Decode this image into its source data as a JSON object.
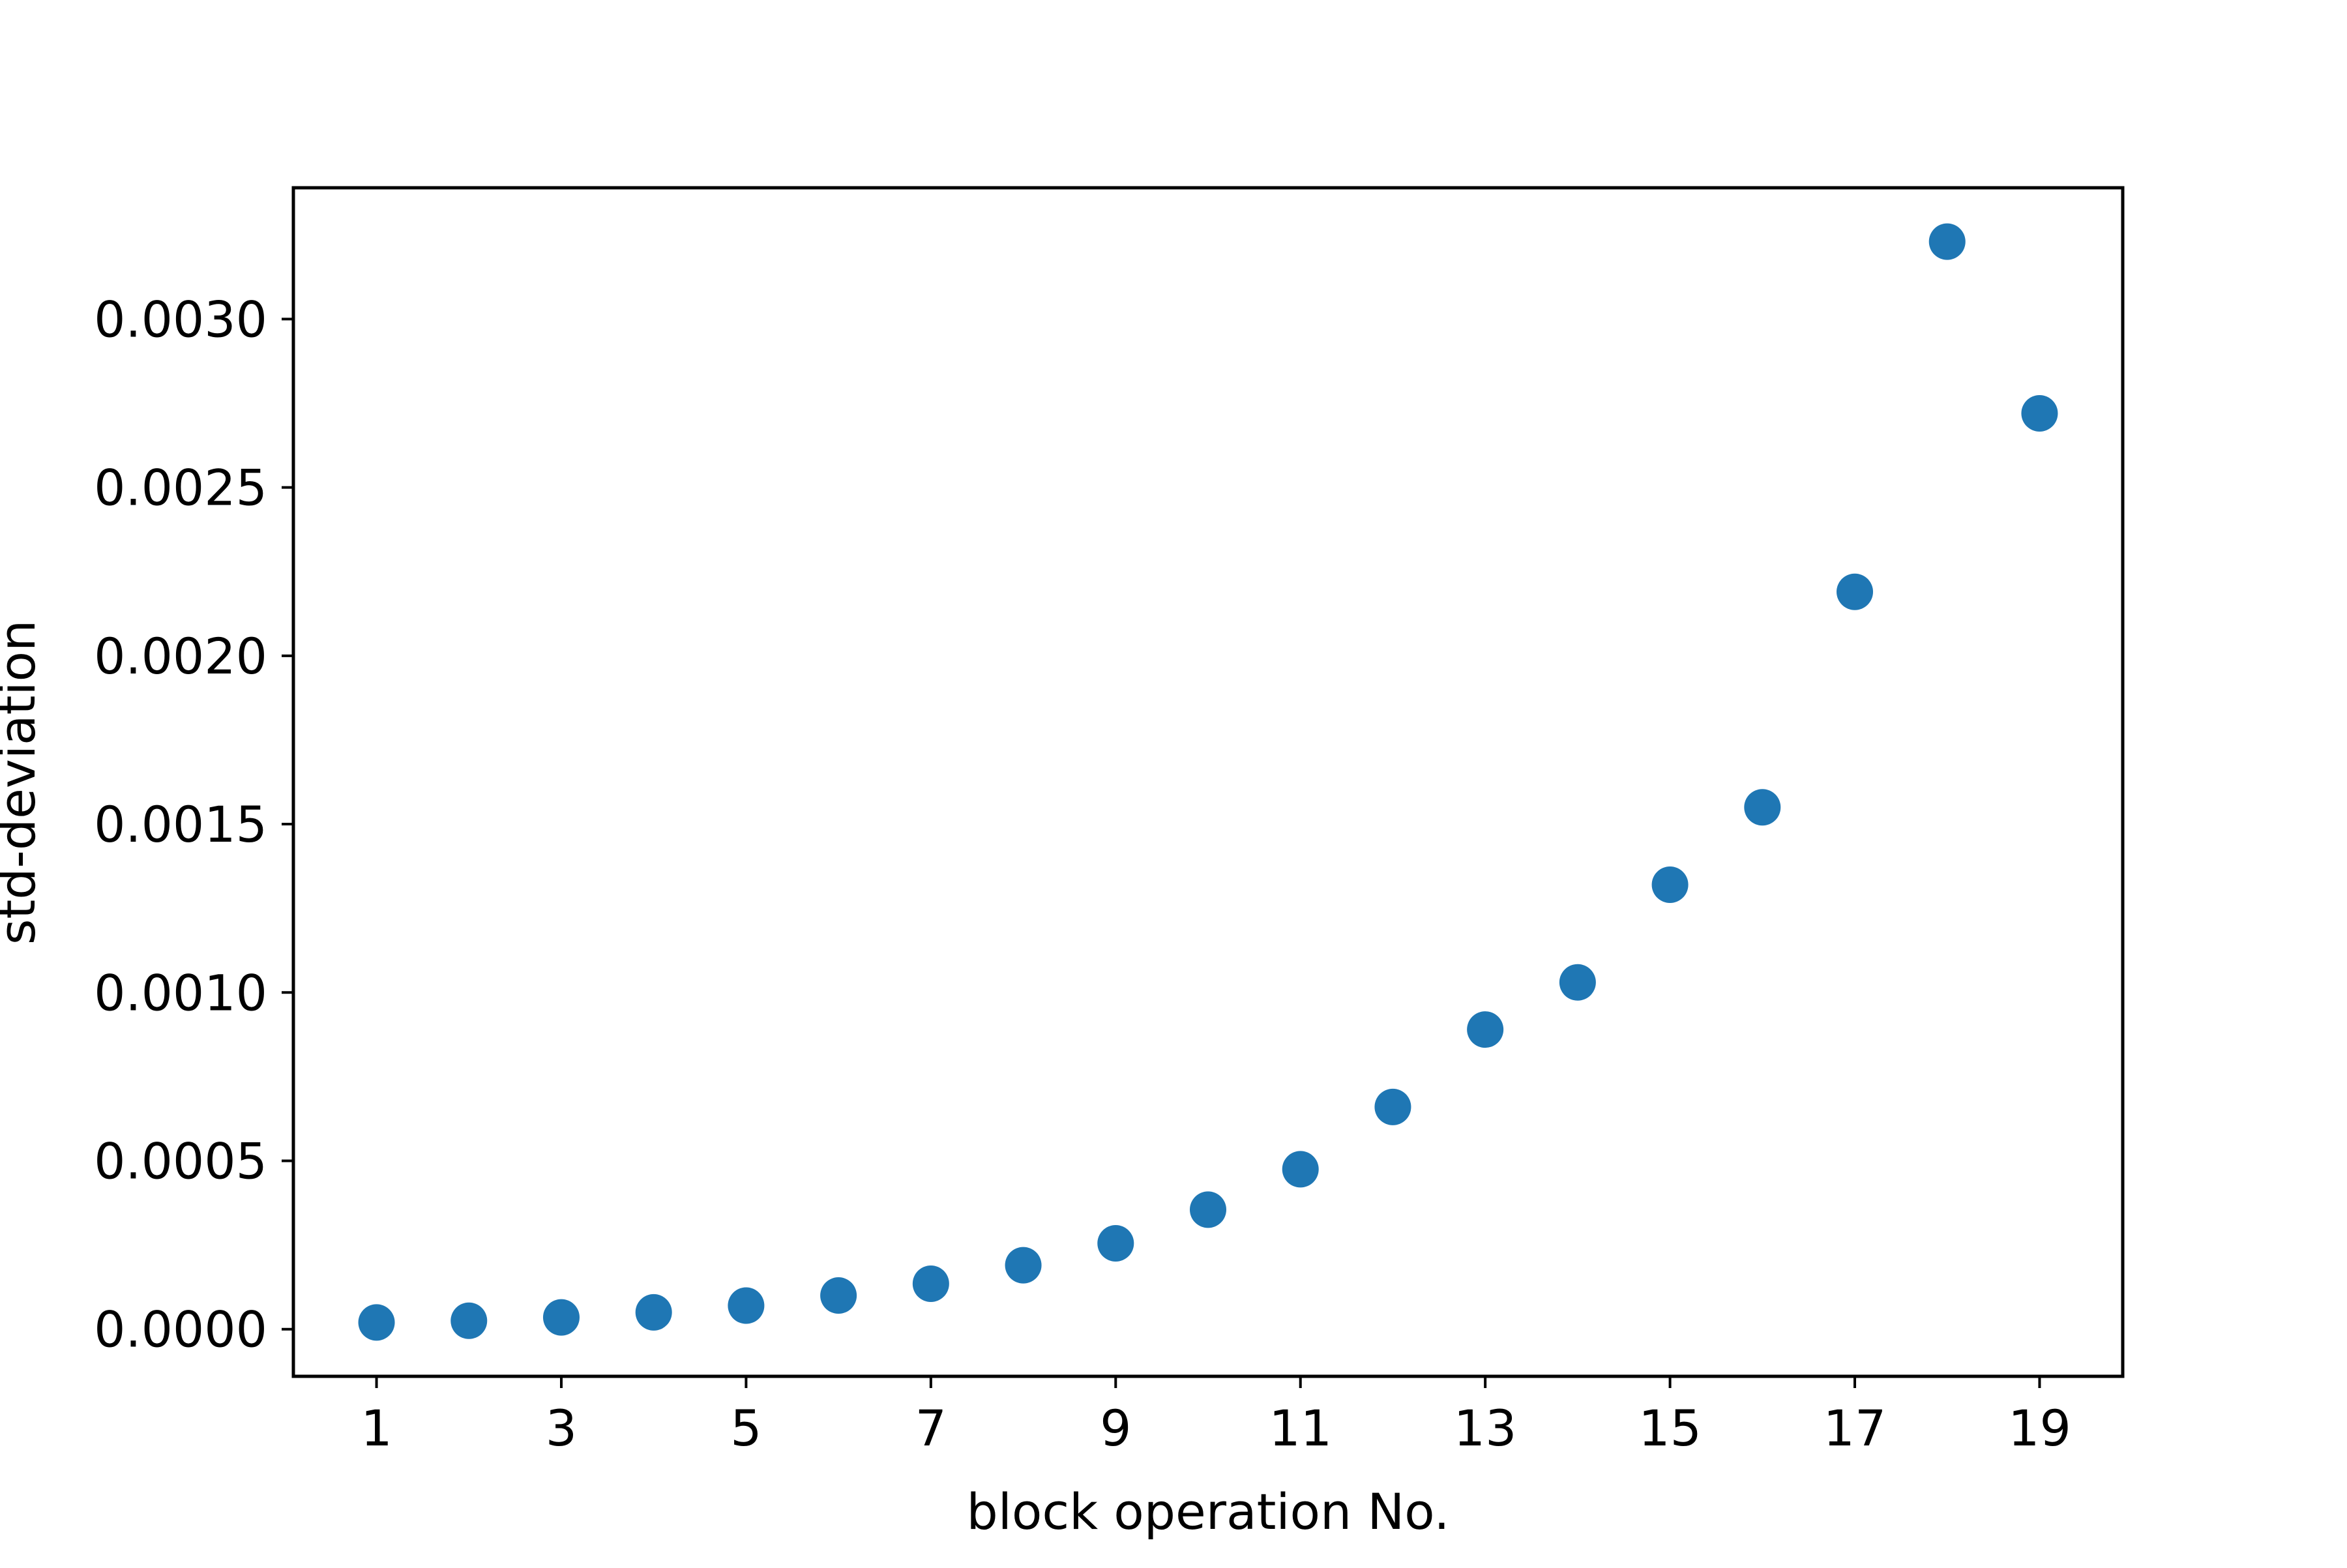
{
  "chart_data": {
    "type": "scatter",
    "title": "",
    "xlabel": "block operation No.",
    "ylabel": "std-deviation",
    "xlim": [
      0.1,
      19.9
    ],
    "ylim": [
      -0.00014,
      0.00339
    ],
    "x_ticks": [
      1,
      3,
      5,
      7,
      9,
      11,
      13,
      15,
      17,
      19
    ],
    "x_tick_labels": [
      "1",
      "3",
      "5",
      "7",
      "9",
      "11",
      "13",
      "15",
      "17",
      "19"
    ],
    "y_ticks": [
      0.0,
      0.0005,
      0.001,
      0.0015,
      0.002,
      0.0025,
      0.003
    ],
    "y_tick_labels": [
      "0.0000",
      "0.0005",
      "0.0010",
      "0.0015",
      "0.0020",
      "0.0025",
      "0.0030"
    ],
    "grid": false,
    "legend": "none",
    "series": [
      {
        "color": "#1f77b4",
        "x": [
          1,
          2,
          3,
          4,
          5,
          6,
          7,
          8,
          9,
          10,
          11,
          12,
          13,
          14,
          15,
          16,
          17,
          18,
          19
        ],
        "y": [
          2e-05,
          2.5e-05,
          3.5e-05,
          5e-05,
          7e-05,
          0.0001,
          0.000135,
          0.00019,
          0.000255,
          0.000355,
          0.000475,
          0.00066,
          0.00089,
          0.00103,
          0.00132,
          0.00155,
          0.00219,
          0.00323,
          0.00272
        ]
      }
    ]
  }
}
